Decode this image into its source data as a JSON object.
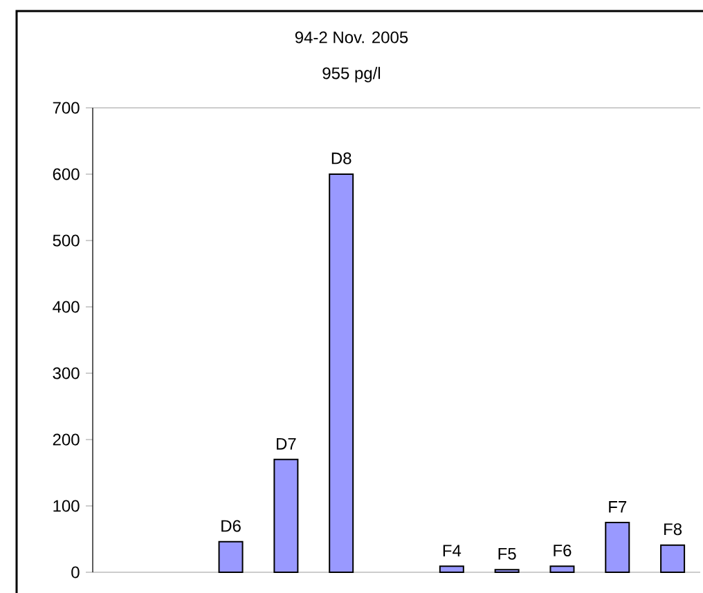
{
  "chart_data": {
    "type": "bar",
    "title": "94-2 Nov. 2005",
    "subtitle": "955 pg/l",
    "categories": [
      null,
      null,
      "D6",
      "D7",
      "D8",
      null,
      "F4",
      "F5",
      "F6",
      "F7",
      "F8"
    ],
    "values": [
      null,
      null,
      46,
      170,
      600,
      null,
      9,
      4,
      9,
      75,
      41
    ],
    "color": "#9999ff",
    "ylim": [
      0,
      700
    ],
    "yticks": [
      0,
      100,
      200,
      300,
      400,
      500,
      600,
      700
    ]
  }
}
